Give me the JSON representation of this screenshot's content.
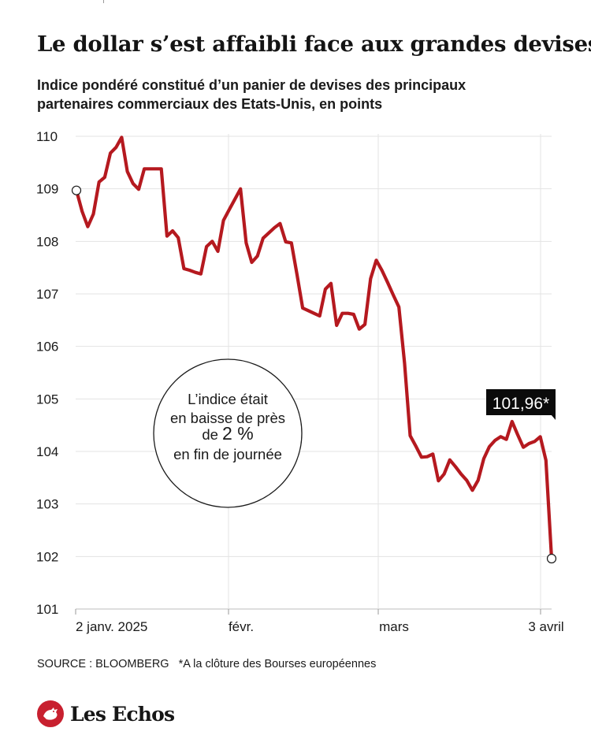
{
  "title": "Le dollar s’est affaibli face aux grandes devises",
  "subtitle": "Indice pondéré constitué d’un panier de devises des principaux partenaires commerciaux des Etats-Unis, en points",
  "chart_data": {
    "type": "line",
    "title": "Le dollar s’est affaibli face aux grandes devises",
    "subtitle": "Indice pondéré constitué d’un panier de devises des principaux partenaires commerciaux des Etats-Unis, en points",
    "ylim": [
      101,
      110
    ],
    "yticks": [
      101,
      102,
      103,
      104,
      105,
      106,
      107,
      108,
      109,
      110
    ],
    "xticks": [
      "2 janv. 2025",
      "févr.",
      "mars",
      "3 avril"
    ],
    "grid": true,
    "color": "#b5191f",
    "series": [
      {
        "values": [
          108.97,
          108.57,
          108.28,
          108.52,
          109.13,
          109.22,
          109.68,
          109.79,
          109.98,
          109.33,
          109.1,
          108.99,
          109.38,
          109.38,
          109.38,
          109.38,
          108.1,
          108.2,
          108.07,
          107.48,
          107.45,
          107.41,
          107.38,
          107.9,
          108.0,
          107.81,
          108.4,
          108.6,
          108.8,
          109.0,
          107.97,
          107.6,
          107.72,
          108.06,
          108.16,
          108.26,
          108.34,
          107.99,
          107.97,
          107.36,
          106.73,
          106.68,
          106.63,
          106.58,
          107.09,
          107.2,
          106.4,
          106.63,
          106.63,
          106.61,
          106.33,
          106.42,
          107.29,
          107.64,
          107.45,
          107.22,
          106.98,
          106.75,
          105.68,
          104.3,
          104.1,
          103.89,
          103.9,
          103.95,
          103.44,
          103.57,
          103.84,
          103.71,
          103.57,
          103.45,
          103.26,
          103.45,
          103.86,
          104.09,
          104.21,
          104.28,
          104.23,
          104.57,
          104.32,
          104.08,
          104.15,
          104.19,
          104.28,
          103.83,
          101.96
        ]
      }
    ],
    "annotations": {
      "last_value": "101,96*",
      "bubble_line1": "L’indice était",
      "bubble_line2": "en baisse de près",
      "bubble_line3_pre": "de ",
      "bubble_line3_emph": "2 %",
      "bubble_line4": "en fin de journée"
    }
  },
  "footer": {
    "source": "SOURCE : BLOOMBERG",
    "note": "*A la clôture des Bourses européennes"
  },
  "logo": {
    "text": "Les Echos",
    "color": "#c8202f"
  }
}
